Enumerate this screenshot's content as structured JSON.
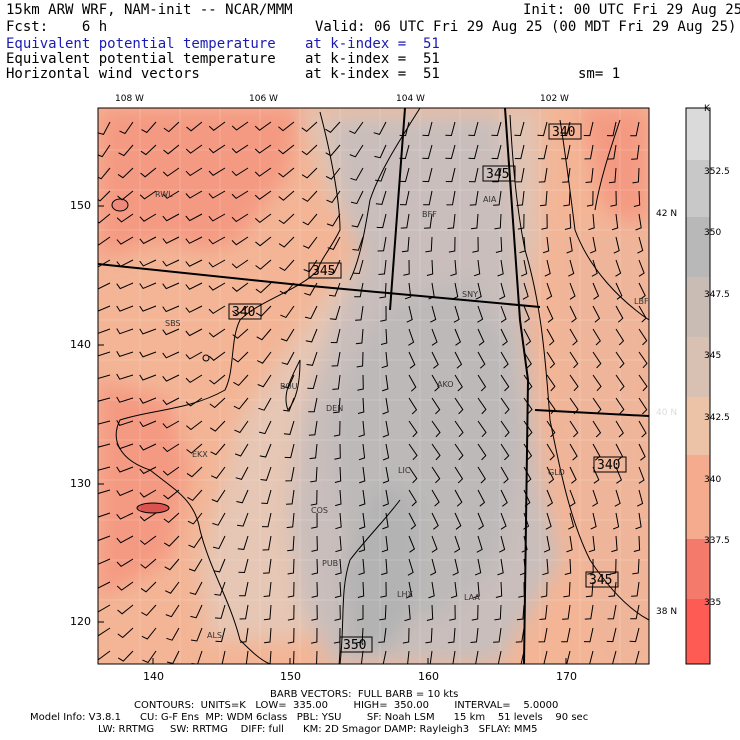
{
  "header": {
    "model": "15km ARW WRF, NAM-init -- NCAR/MMM",
    "init": "Init: 00 UTC Fri 29 Aug 25",
    "fcst": "Fcst:    6 h",
    "valid": "Valid: 06 UTC Fri 29 Aug 25 (00 MDT Fri 29 Aug 25)",
    "fields": [
      {
        "name": "Equivalent potential temperature",
        "level": "at k-index =  51"
      },
      {
        "name": "Equivalent potential temperature",
        "level": "at k-index =  51"
      },
      {
        "name": "Horizontal wind vectors",
        "level": "at k-index =  51"
      }
    ],
    "smoothing": "sm= 1"
  },
  "axes": {
    "top_lon": [
      "108 W",
      "106 W",
      "104 W",
      "102 W"
    ],
    "bottom_x": [
      "140",
      "150",
      "160",
      "170"
    ],
    "left_y": [
      "150",
      "140",
      "130",
      "120"
    ],
    "right_lat": [
      "42 N",
      "40 N",
      "38 N"
    ]
  },
  "colorbar": {
    "unit": "K",
    "labels": [
      "352.5",
      "350",
      "347.5",
      "345",
      "342.5",
      "340",
      "337.5",
      "335"
    ],
    "colors": [
      "#dadada",
      "#c8c8c8",
      "#b8b8b8",
      "#c9bcb4",
      "#d8c1b3",
      "#edc3a8",
      "#f5ab8e",
      "#f47b6c",
      "#ff5b55"
    ]
  },
  "contour_labels": [
    "340",
    "345",
    "345",
    "340",
    "340",
    "345",
    "350"
  ],
  "stations": [
    "RWL",
    "BFF",
    "AIA",
    "SNY",
    "LBF",
    "SBS",
    "BOU",
    "DEN",
    "AKO",
    "EKX",
    "LIC",
    "GLD",
    "COS",
    "PUB",
    "LHX",
    "LAA",
    "ALS"
  ],
  "footer": {
    "barb": "BARB VECTORS:  FULL BARB = 10 kts",
    "contours": "CONTOURS:  UNITS=K   LOW=  335.00        HIGH=  350.00        INTERVAL=    5.0000",
    "model_info": "Model Info: V3.8.1      CU: G-F Ens  MP: WDM 6class   PBL: YSU        SF: Noah LSM      15 km    51 levels    90 sec",
    "model_info2": "LW: RRTMG     SW: RRTMG    DIFF: full      KM: 2D Smagor DAMP: Rayleigh3   SFLAY: MM5"
  }
}
